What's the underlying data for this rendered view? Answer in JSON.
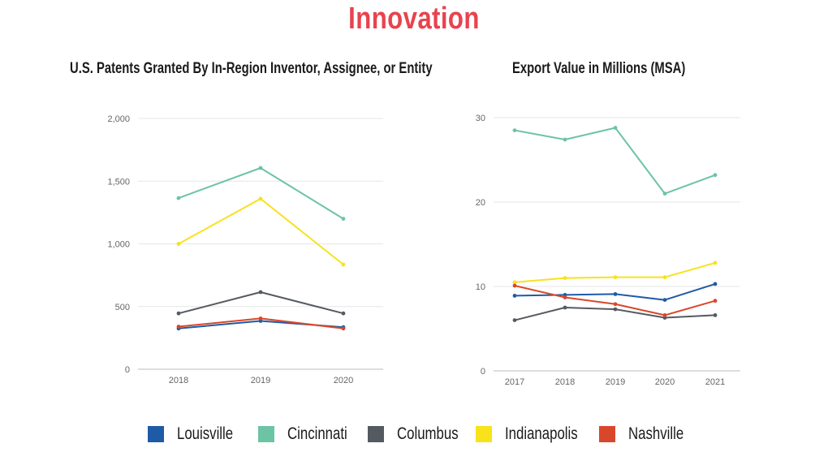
{
  "page_title": "Innovation",
  "legend": [
    {
      "name": "Louisville",
      "color": "#1f5aa6"
    },
    {
      "name": "Cincinnati",
      "color": "#6cc4a4"
    },
    {
      "name": "Columbus",
      "color": "#555a60"
    },
    {
      "name": "Indianapolis",
      "color": "#f7e21c"
    },
    {
      "name": "Nashville",
      "color": "#d9472b"
    }
  ],
  "chart_data": [
    {
      "type": "line",
      "title": "U.S. Patents Granted By In-Region Inventor, Assignee, or Entity",
      "x": [
        "2018",
        "2019",
        "2020"
      ],
      "ylim": [
        0,
        2000
      ],
      "yticks": [
        0,
        500,
        1000,
        1500,
        2000
      ],
      "ytick_labels": [
        "0",
        "500",
        "1,000",
        "1,500",
        "2,000"
      ],
      "grid": true,
      "series": [
        {
          "name": "Louisville",
          "color": "#1f5aa6",
          "values": [
            325,
            385,
            335
          ]
        },
        {
          "name": "Cincinnati",
          "color": "#6cc4a4",
          "values": [
            1365,
            1605,
            1200
          ]
        },
        {
          "name": "Columbus",
          "color": "#555a60",
          "values": [
            445,
            615,
            445
          ]
        },
        {
          "name": "Indianapolis",
          "color": "#f7e21c",
          "values": [
            1000,
            1360,
            835
          ]
        },
        {
          "name": "Nashville",
          "color": "#d9472b",
          "values": [
            340,
            405,
            325
          ]
        }
      ]
    },
    {
      "type": "line",
      "title": "Export Value in Millions (MSA)",
      "x": [
        "2017",
        "2018",
        "2019",
        "2020",
        "2021"
      ],
      "ylim": [
        0,
        30
      ],
      "yticks": [
        0,
        10,
        20,
        30
      ],
      "ytick_labels": [
        "0",
        "10",
        "20",
        "30"
      ],
      "grid": true,
      "series": [
        {
          "name": "Louisville",
          "color": "#1f5aa6",
          "values": [
            8.9,
            9.0,
            9.1,
            8.4,
            10.3
          ]
        },
        {
          "name": "Cincinnati",
          "color": "#6cc4a4",
          "values": [
            28.5,
            27.4,
            28.8,
            21.0,
            23.2
          ]
        },
        {
          "name": "Columbus",
          "color": "#555a60",
          "values": [
            6.0,
            7.5,
            7.3,
            6.3,
            6.6
          ]
        },
        {
          "name": "Indianapolis",
          "color": "#f7e21c",
          "values": [
            10.5,
            11.0,
            11.1,
            11.1,
            12.8
          ]
        },
        {
          "name": "Nashville",
          "color": "#d9472b",
          "values": [
            10.1,
            8.7,
            7.9,
            6.6,
            8.3
          ]
        }
      ]
    }
  ]
}
